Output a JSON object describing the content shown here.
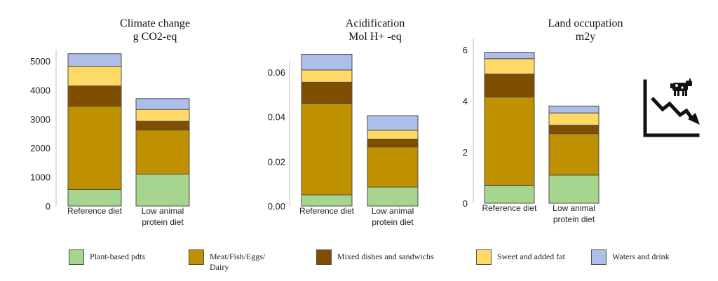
{
  "legend": [
    {
      "label": "Plant-based pdts",
      "color": "#a6d58f"
    },
    {
      "label": "Meat/Fish/Eggs/ Dairy",
      "color": "#bf9000"
    },
    {
      "label": "Mixed dishes and sandwichs",
      "color": "#7f4e00"
    },
    {
      "label": "Sweet and added fat",
      "color": "#ffd966"
    },
    {
      "label": "Waters and drink",
      "color": "#adbfe8"
    }
  ],
  "icons": {
    "corner": "cow-declining-chart-icon"
  },
  "chart_data": [
    {
      "type": "bar",
      "stacked": true,
      "title": "Climate change",
      "subtitle": "g CO2-eq",
      "categories": [
        "Reference diet",
        "Low animal protein diet"
      ],
      "series": [
        {
          "name": "Plant-based pdts",
          "values": [
            570,
            1100
          ],
          "color": "#a6d58f"
        },
        {
          "name": "Meat/Fish/Eggs/ Dairy",
          "values": [
            2870,
            1520
          ],
          "color": "#bf9000"
        },
        {
          "name": "Mixed dishes and sandwichs",
          "values": [
            700,
            300
          ],
          "color": "#7f4e00"
        },
        {
          "name": "Sweet and added fat",
          "values": [
            680,
            410
          ],
          "color": "#ffd966"
        },
        {
          "name": "Waters and drink",
          "values": [
            430,
            370
          ],
          "color": "#adbfe8"
        }
      ],
      "ylim": [
        0,
        5000
      ],
      "yticks": [
        "0",
        "1000",
        "2000",
        "3000",
        "4000",
        "5000"
      ],
      "grid": false
    },
    {
      "type": "bar",
      "stacked": true,
      "title": "Acidification",
      "subtitle": "Mol H+ -eq",
      "categories": [
        "Reference diet",
        "Low animal protein diet"
      ],
      "series": [
        {
          "name": "Plant-based pdts",
          "values": [
            0.005,
            0.0085
          ],
          "color": "#a6d58f"
        },
        {
          "name": "Meat/Fish/Eggs/ Dairy",
          "values": [
            0.041,
            0.018
          ],
          "color": "#bf9000"
        },
        {
          "name": "Mixed dishes and sandwichs",
          "values": [
            0.0095,
            0.0035
          ],
          "color": "#7f4e00"
        },
        {
          "name": "Sweet and added fat",
          "values": [
            0.0055,
            0.004
          ],
          "color": "#ffd966"
        },
        {
          "name": "Waters and drink",
          "values": [
            0.007,
            0.0065
          ],
          "color": "#adbfe8"
        }
      ],
      "ylim": [
        0,
        0.06
      ],
      "yticks": [
        "0.00",
        "0.02",
        "0.04",
        "0.06"
      ],
      "grid": false
    },
    {
      "type": "bar",
      "stacked": true,
      "title": "Land occupation",
      "subtitle": "m2y",
      "categories": [
        "Reference diet",
        "Low animal protein diet"
      ],
      "series": [
        {
          "name": "Plant-based pdts",
          "values": [
            0.7,
            1.1
          ],
          "color": "#a6d58f"
        },
        {
          "name": "Meat/Fish/Eggs/ Dairy",
          "values": [
            3.45,
            1.62
          ],
          "color": "#bf9000"
        },
        {
          "name": "Mixed dishes and sandwichs",
          "values": [
            0.9,
            0.33
          ],
          "color": "#7f4e00"
        },
        {
          "name": "Sweet and added fat",
          "values": [
            0.6,
            0.48
          ],
          "color": "#ffd966"
        },
        {
          "name": "Waters and drink",
          "values": [
            0.25,
            0.27
          ],
          "color": "#adbfe8"
        }
      ],
      "ylim": [
        0,
        6
      ],
      "yticks": [
        "0",
        "2",
        "4",
        "6"
      ],
      "grid": false
    }
  ]
}
